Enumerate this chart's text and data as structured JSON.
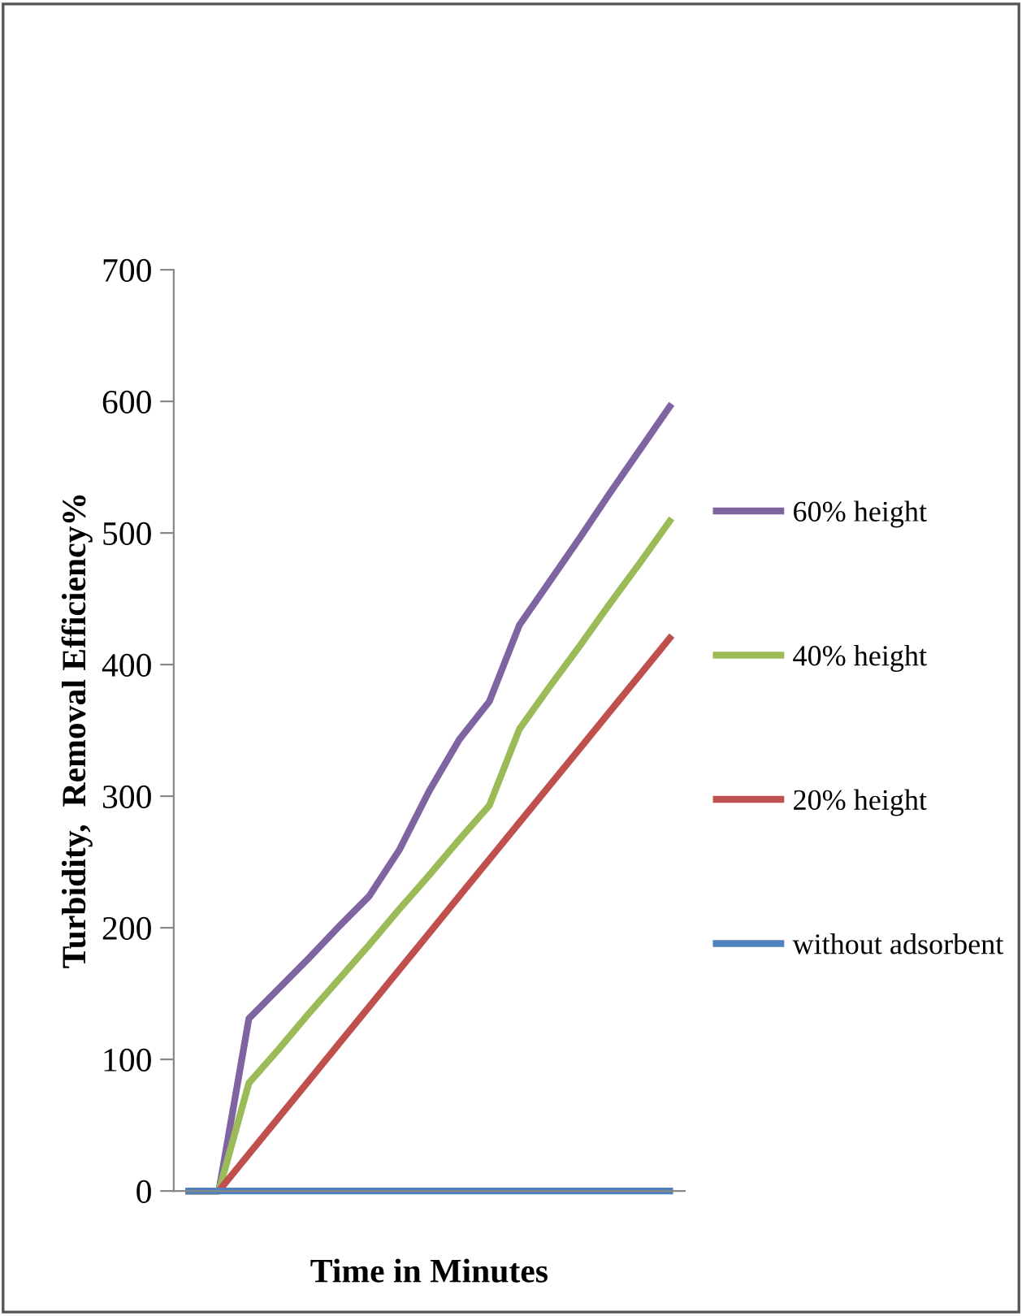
{
  "chart_data": {
    "type": "line",
    "xlabel": "Time in Minutes",
    "ylabel": "Turbidity,  Removal Efficiency%",
    "categories": [
      null,
      null,
      null,
      null,
      null,
      null,
      null,
      null,
      null,
      null,
      null,
      null,
      null,
      null,
      null,
      null,
      null
    ],
    "series": [
      {
        "name": "60% height",
        "color": "#8064a2",
        "values": [
          0,
          0,
          131,
          154,
          177,
          201,
          224,
          259,
          304,
          343,
          372,
          430,
          463,
          496,
          530,
          563,
          596
        ]
      },
      {
        "name": "40% height",
        "color": "#9bbb59",
        "values": [
          0,
          0,
          82,
          108,
          135,
          161,
          187,
          214,
          240,
          267,
          293,
          351,
          383,
          414,
          446,
          477,
          509
        ]
      },
      {
        "name": "20% height",
        "color": "#c0504d",
        "values": [
          0,
          0,
          28,
          56,
          84,
          112,
          140,
          168,
          196,
          224,
          252,
          280,
          308,
          336,
          364,
          392,
          420
        ]
      },
      {
        "name": "without adsorbent",
        "color": "#4f81bd",
        "values": [
          0,
          0,
          0,
          0,
          0,
          0,
          0,
          0,
          0,
          0,
          0,
          0,
          0,
          0,
          0,
          0,
          0
        ]
      }
    ],
    "ylim": [
      0,
      700
    ],
    "yticks": [
      0,
      100,
      200,
      300,
      400,
      500,
      600,
      700
    ],
    "grid": false,
    "legend": "right",
    "marker": "none",
    "line_style": "solid",
    "tick_labels": "y"
  }
}
